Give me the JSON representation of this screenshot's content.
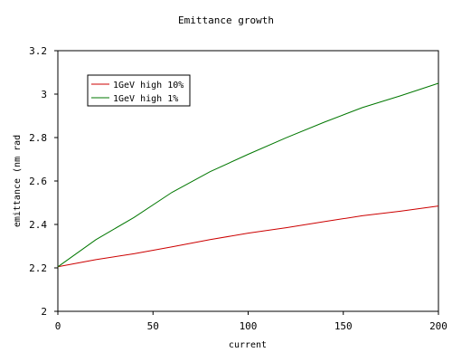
{
  "chart_data": {
    "type": "line",
    "title": "Emittance growth",
    "xlabel": "current",
    "ylabel": "emittance (nm rad",
    "xlim": [
      0,
      200
    ],
    "ylim": [
      2,
      3.2
    ],
    "xticks": [
      0,
      50,
      100,
      150,
      200
    ],
    "yticks": [
      2,
      2.2,
      2.4,
      2.6,
      2.8,
      3,
      3.2
    ],
    "xtick_labels": [
      "0",
      "50",
      "100",
      "150",
      "200"
    ],
    "ytick_labels": [
      "2",
      "2.2",
      "2.4",
      "2.6",
      "2.8",
      "3",
      "3.2"
    ],
    "grid": false,
    "legend_position": "top-left",
    "series": [
      {
        "name": "1GeV high 10%",
        "color": "#cc0000",
        "x": [
          0,
          20,
          40,
          60,
          80,
          100,
          120,
          140,
          160,
          180,
          200
        ],
        "y": [
          2.205,
          2.238,
          2.265,
          2.297,
          2.33,
          2.36,
          2.385,
          2.413,
          2.44,
          2.461,
          2.485
        ]
      },
      {
        "name": "1GeV high 1%",
        "color": "#007700",
        "x": [
          0,
          20,
          40,
          60,
          80,
          100,
          120,
          140,
          160,
          180,
          200
        ],
        "y": [
          2.205,
          2.33,
          2.432,
          2.548,
          2.643,
          2.723,
          2.799,
          2.871,
          2.938,
          2.992,
          3.05
        ]
      }
    ]
  }
}
